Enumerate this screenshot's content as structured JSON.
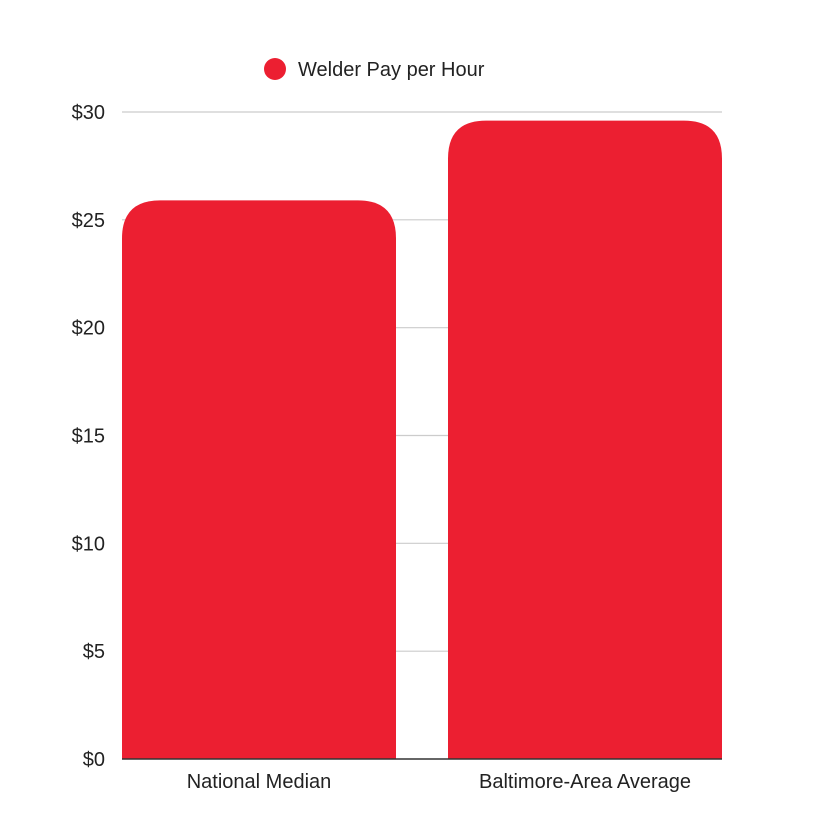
{
  "chart_data": {
    "type": "bar",
    "categories": [
      "National Median",
      "Baltimore-Area Average"
    ],
    "series": [
      {
        "name": "Welder Pay per Hour",
        "values": [
          25.9,
          29.6
        ]
      }
    ],
    "yticks": [
      "$0",
      "$5",
      "$10",
      "$15",
      "$20",
      "$25",
      "$30"
    ],
    "ylim": [
      0,
      30
    ],
    "ytick_step": 5,
    "grid": true,
    "legend_position": "top-center",
    "color": "#ec1f31",
    "grid_color": "#cccccc"
  }
}
